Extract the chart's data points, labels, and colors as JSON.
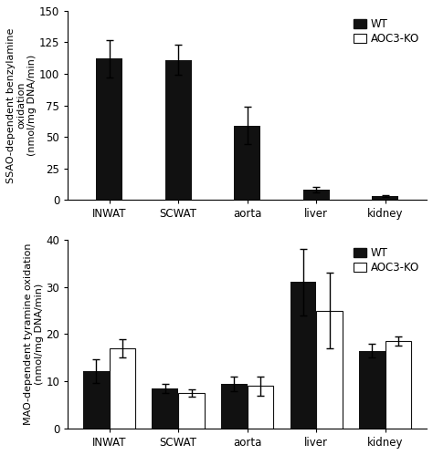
{
  "categories": [
    "INWAT",
    "SCWAT",
    "aorta",
    "liver",
    "kidney"
  ],
  "ssao_wt_values": [
    112,
    111,
    59,
    8,
    3
  ],
  "ssao_wt_errors": [
    15,
    12,
    15,
    2,
    0.5
  ],
  "ssao_ylabel_line1": "SSAO-dependent benzylamine",
  "ssao_ylabel_line2": "oxidation",
  "ssao_ylabel_line3": "(nmol/mg DNA/min)",
  "ssao_ylim": [
    0,
    150
  ],
  "ssao_yticks": [
    0,
    25,
    50,
    75,
    100,
    125,
    150
  ],
  "mao_wt_values": [
    12.2,
    8.5,
    9.5,
    31,
    16.5
  ],
  "mao_wt_errors": [
    2.5,
    1.0,
    1.5,
    7,
    1.5
  ],
  "mao_ko_values": [
    17,
    7.5,
    9.0,
    25,
    18.5
  ],
  "mao_ko_errors": [
    2.0,
    0.8,
    2.0,
    8,
    1.0
  ],
  "mao_ylabel_line1": "MAO-dependent tyramine oxidation",
  "mao_ylabel_line2": "(nmol/mg DNA/min)",
  "mao_ylim": [
    0,
    40
  ],
  "mao_yticks": [
    0,
    10,
    20,
    30,
    40
  ],
  "bar_width": 0.38,
  "wt_color": "#111111",
  "ko_color": "#ffffff",
  "ko_edge_color": "#111111",
  "legend_wt": "WT",
  "legend_ko": "AOC3-KO",
  "font_size": 8,
  "tick_font_size": 8.5,
  "legend_font_size": 8.5
}
